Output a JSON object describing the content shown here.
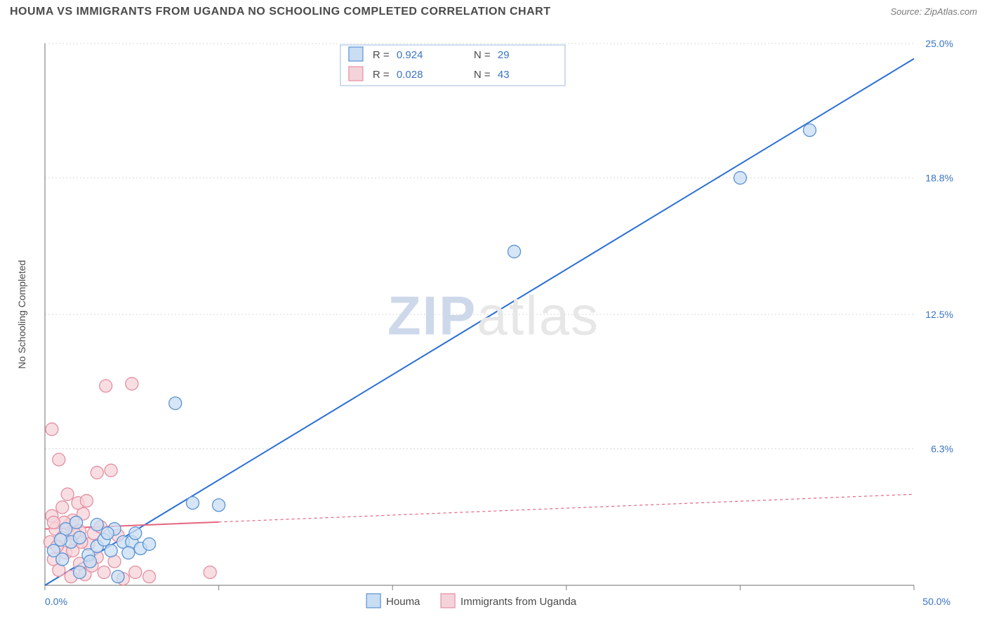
{
  "title": "HOUMA VS IMMIGRANTS FROM UGANDA NO SCHOOLING COMPLETED CORRELATION CHART",
  "source": "Source: ZipAtlas.com",
  "watermark_a": "ZIP",
  "watermark_b": "atlas",
  "chart": {
    "type": "scatter",
    "background_color": "#ffffff",
    "grid_color": "#d9d9d9",
    "axis_color": "#6f6f6f",
    "tick_color": "#808080",
    "label_color": "#4a4a4a",
    "value_color": "#3a74c4",
    "ylabel": "No Schooling Completed",
    "label_fontsize": 14,
    "tick_fontsize": 14,
    "xlim": [
      0,
      50
    ],
    "ylim": [
      0,
      25
    ],
    "xticks": [
      0,
      10,
      20,
      30,
      40,
      50
    ],
    "yticks": [
      6.3,
      12.5,
      18.8,
      25.0
    ],
    "xtick_labels": [
      "0.0%",
      "",
      "",
      "",
      "",
      "50.0%"
    ],
    "ytick_labels": [
      "6.3%",
      "12.5%",
      "18.8%",
      "25.0%"
    ],
    "marker_radius": 9,
    "marker_stroke_width": 1.3,
    "line_width": 2,
    "series": [
      {
        "name": "Houma",
        "fill": "#c9ddf3",
        "stroke": "#5a92d4",
        "line_color": "#2a6fd6",
        "line_dash": "none",
        "r": 0.924,
        "n": 29,
        "trend": {
          "x1": 0,
          "y1": 0,
          "x2": 50,
          "y2": 24.3
        },
        "points": [
          [
            0.5,
            1.6
          ],
          [
            1.0,
            1.2
          ],
          [
            1.2,
            2.6
          ],
          [
            1.5,
            2.0
          ],
          [
            2.0,
            2.2
          ],
          [
            2.0,
            0.6
          ],
          [
            2.5,
            1.4
          ],
          [
            3.0,
            1.8
          ],
          [
            3.0,
            2.8
          ],
          [
            3.4,
            2.1
          ],
          [
            3.8,
            1.6
          ],
          [
            4.0,
            2.6
          ],
          [
            4.2,
            0.4
          ],
          [
            4.5,
            2.0
          ],
          [
            5.0,
            2.0
          ],
          [
            5.5,
            1.7
          ],
          [
            6.0,
            1.9
          ],
          [
            7.5,
            8.4
          ],
          [
            8.5,
            3.8
          ],
          [
            10.0,
            3.7
          ],
          [
            27.0,
            15.4
          ],
          [
            40.0,
            18.8
          ],
          [
            44.0,
            21.0
          ],
          [
            1.8,
            2.9
          ],
          [
            2.6,
            1.1
          ],
          [
            3.6,
            2.4
          ],
          [
            4.8,
            1.5
          ],
          [
            5.2,
            2.4
          ],
          [
            0.9,
            2.1
          ]
        ]
      },
      {
        "name": "Immigrants from Uganda",
        "fill": "#f5d3da",
        "stroke": "#e48ea0",
        "line_color": "#e4657e",
        "line_dash": "4 4",
        "r": 0.028,
        "n": 43,
        "trend": {
          "x1": 0,
          "y1": 2.6,
          "x2": 50,
          "y2": 4.2
        },
        "trend_solid_to_x": 10,
        "points": [
          [
            0.3,
            2.0
          ],
          [
            0.4,
            3.2
          ],
          [
            0.5,
            1.2
          ],
          [
            0.6,
            2.6
          ],
          [
            0.8,
            5.8
          ],
          [
            0.8,
            0.7
          ],
          [
            1.0,
            2.2
          ],
          [
            1.0,
            3.6
          ],
          [
            1.2,
            1.5
          ],
          [
            1.3,
            4.2
          ],
          [
            1.4,
            2.8
          ],
          [
            1.5,
            0.4
          ],
          [
            1.6,
            3.0
          ],
          [
            1.8,
            2.1
          ],
          [
            2.0,
            1.0
          ],
          [
            2.0,
            2.5
          ],
          [
            2.2,
            3.3
          ],
          [
            2.3,
            0.5
          ],
          [
            2.5,
            1.9
          ],
          [
            2.8,
            2.4
          ],
          [
            3.0,
            5.2
          ],
          [
            3.0,
            1.3
          ],
          [
            3.2,
            2.7
          ],
          [
            3.4,
            0.6
          ],
          [
            3.5,
            9.2
          ],
          [
            3.8,
            5.3
          ],
          [
            4.0,
            1.1
          ],
          [
            4.2,
            2.3
          ],
          [
            4.5,
            0.3
          ],
          [
            5.0,
            9.3
          ],
          [
            5.2,
            0.6
          ],
          [
            6.0,
            0.4
          ],
          [
            9.5,
            0.6
          ],
          [
            0.7,
            1.8
          ],
          [
            1.1,
            2.9
          ],
          [
            1.6,
            1.6
          ],
          [
            1.9,
            3.8
          ],
          [
            2.4,
            3.9
          ],
          [
            2.7,
            0.9
          ],
          [
            0.4,
            7.2
          ],
          [
            2.1,
            2.0
          ],
          [
            0.5,
            2.9
          ],
          [
            1.7,
            2.4
          ]
        ]
      }
    ],
    "legend_top": {
      "border": "#9cbbe2",
      "bg": "#ffffff",
      "rows": [
        {
          "swatch_fill": "#c9ddf3",
          "swatch_stroke": "#5a92d4",
          "r_label": "R =",
          "r_val": "0.924",
          "n_label": "N =",
          "n_val": "29"
        },
        {
          "swatch_fill": "#f5d3da",
          "swatch_stroke": "#e48ea0",
          "r_label": "R =",
          "r_val": "0.028",
          "n_label": "N =",
          "n_val": "43"
        }
      ]
    },
    "legend_bottom": [
      {
        "swatch_fill": "#c9ddf3",
        "swatch_stroke": "#5a92d4",
        "label": "Houma"
      },
      {
        "swatch_fill": "#f5d3da",
        "swatch_stroke": "#e48ea0",
        "label": "Immigrants from Uganda"
      }
    ]
  }
}
